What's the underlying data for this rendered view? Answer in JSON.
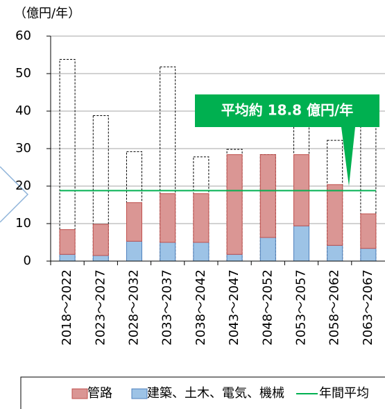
{
  "chart_data": {
    "type": "stacked_bar",
    "y_unit": "（億円/年）",
    "categories": [
      "2018～2022",
      "2023～2027",
      "2028～2032",
      "2033～2037",
      "2038～2042",
      "2043～2047",
      "2048～2052",
      "2053～2057",
      "2058～2062",
      "2063～2067"
    ],
    "series": [
      {
        "name": "管路",
        "color": "#da9694",
        "stroke": "#c0504d",
        "values": [
          6.6,
          8.3,
          10.3,
          13.0,
          13.0,
          26.6,
          22.1,
          19.0,
          16.2,
          9.2
        ]
      },
      {
        "name": "建築、土木、電気、機械",
        "color": "#9dc3e6",
        "stroke": "#4f81bd",
        "values": [
          1.8,
          1.5,
          5.3,
          5.0,
          5.0,
          1.8,
          6.3,
          9.4,
          4.2,
          3.4
        ]
      }
    ],
    "outline": {
      "values": [
        53.8,
        38.8,
        29.2,
        51.8,
        27.8,
        29.8,
        28.4,
        36.2,
        32.2,
        38.8
      ]
    },
    "average": {
      "name": "年間平均",
      "value": 18.8,
      "color": "#00b050"
    },
    "annotation": "平均約 18.8 億円/年",
    "ylim": [
      0,
      60
    ],
    "yticks": [
      0,
      10,
      20,
      30,
      40,
      50,
      60
    ],
    "grid": true
  }
}
